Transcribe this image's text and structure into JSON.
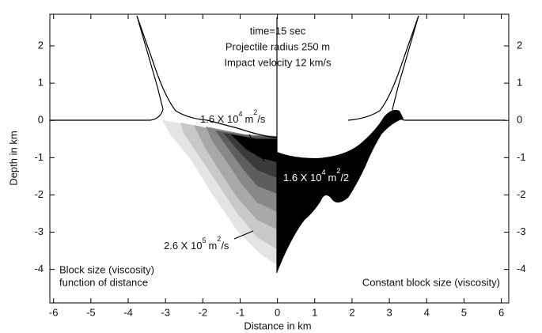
{
  "chart_data": {
    "type": "figure",
    "x_label": "Distance in km",
    "y_label": "Depth in km",
    "xlim": [
      -6.1,
      6.2
    ],
    "xticks": [
      -6,
      -5,
      -4,
      -3,
      -2,
      -1,
      0,
      1,
      2,
      3,
      4,
      5,
      6
    ],
    "ylim": [
      -4.9,
      2.85
    ],
    "yticks": [
      -4,
      -3,
      -2,
      -1,
      0,
      1,
      2
    ],
    "y2lim": [
      -4.9,
      2.85
    ],
    "y2ticks": [
      -4,
      -3,
      -2,
      -1,
      0,
      1,
      2
    ],
    "header": [
      "time=15 sec",
      "Projectile radius 250 m",
      "Impact velocity 12 km/s"
    ],
    "label_upper_left": {
      "text": "1.6 X 10",
      "exp": "4",
      "unit": "m",
      "unit_exp": "2",
      "tail": "/s"
    },
    "label_right": {
      "text": "1.6 X 10",
      "exp": "4",
      "unit": "m",
      "unit_exp": "2",
      "tail": "/2"
    },
    "label_lower_left": {
      "text": "2.6 X 10",
      "exp": "5",
      "unit": "m",
      "unit_exp": "2",
      "tail": "/s"
    },
    "note_left": [
      "Block size (viscosity)",
      "function of distance"
    ],
    "note_right": "Constant block size (viscosity)"
  }
}
